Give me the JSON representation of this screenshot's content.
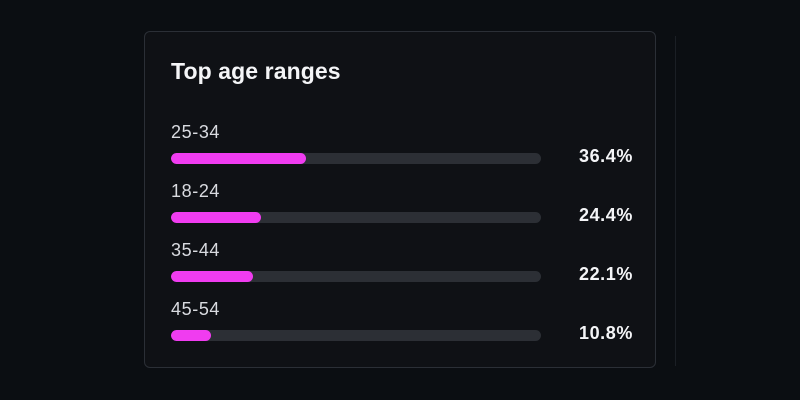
{
  "card": {
    "title": "Top age ranges"
  },
  "colors": {
    "background": "#0b0e12",
    "card_background": "#0f1115",
    "card_border": "#2b2f36",
    "bar_fill": "#f03cf0",
    "bar_track": "#2c2f35",
    "text_primary": "#f4f5f7",
    "text_secondary": "#d9dbe0"
  },
  "age_ranges": [
    {
      "label": "25-34",
      "percent_text": "36.4%",
      "fill_fraction": 0.364
    },
    {
      "label": "18-24",
      "percent_text": "24.4%",
      "fill_fraction": 0.244
    },
    {
      "label": "35-44",
      "percent_text": "22.1%",
      "fill_fraction": 0.221
    },
    {
      "label": "45-54",
      "percent_text": "10.8%",
      "fill_fraction": 0.108
    }
  ]
}
